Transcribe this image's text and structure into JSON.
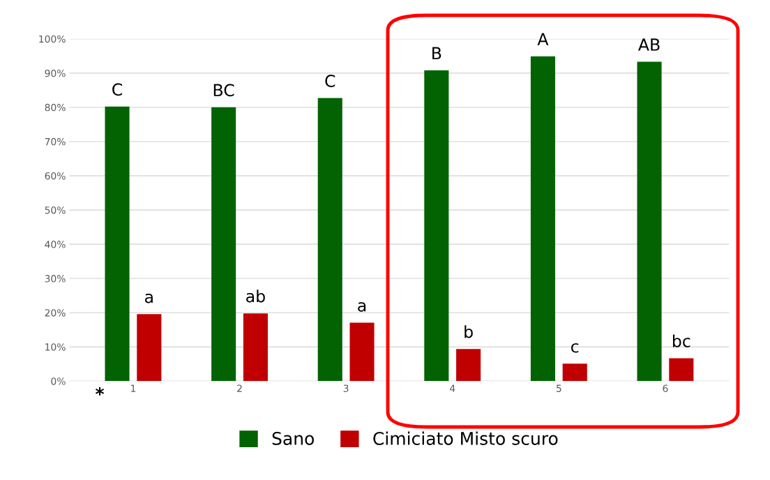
{
  "chart_data": {
    "type": "bar",
    "categories": [
      "1",
      "2",
      "3",
      "4",
      "5",
      "6"
    ],
    "series": [
      {
        "name": "Sano",
        "color": "#036303",
        "values": [
          80.2,
          80,
          82.7,
          90.8,
          94.9,
          93.3
        ]
      },
      {
        "name": "Cimiciato Misto scuro",
        "color": "#c00000",
        "values": [
          19.6,
          19.8,
          17.1,
          9.4,
          5.1,
          6.7
        ]
      }
    ],
    "ylim": [
      0,
      100
    ],
    "yticks": [
      {
        "value": 0,
        "label": "0%"
      },
      {
        "value": 10,
        "label": "10%"
      },
      {
        "value": 20,
        "label": "20%"
      },
      {
        "value": 30,
        "label": "30%"
      },
      {
        "value": 40,
        "label": "40%"
      },
      {
        "value": 50,
        "label": "50%"
      },
      {
        "value": 60,
        "label": "60%"
      },
      {
        "value": 70,
        "label": "70%"
      },
      {
        "value": 80,
        "label": "80%"
      },
      {
        "value": 90,
        "label": "90%"
      },
      {
        "value": 100,
        "label": "100%"
      }
    ],
    "grid": "y",
    "legend": "bottom",
    "annotations": [
      "C",
      "BC",
      "C",
      "B",
      "A",
      "AB",
      "a",
      "ab",
      "a",
      "b",
      "c",
      "bc",
      "*"
    ]
  }
}
